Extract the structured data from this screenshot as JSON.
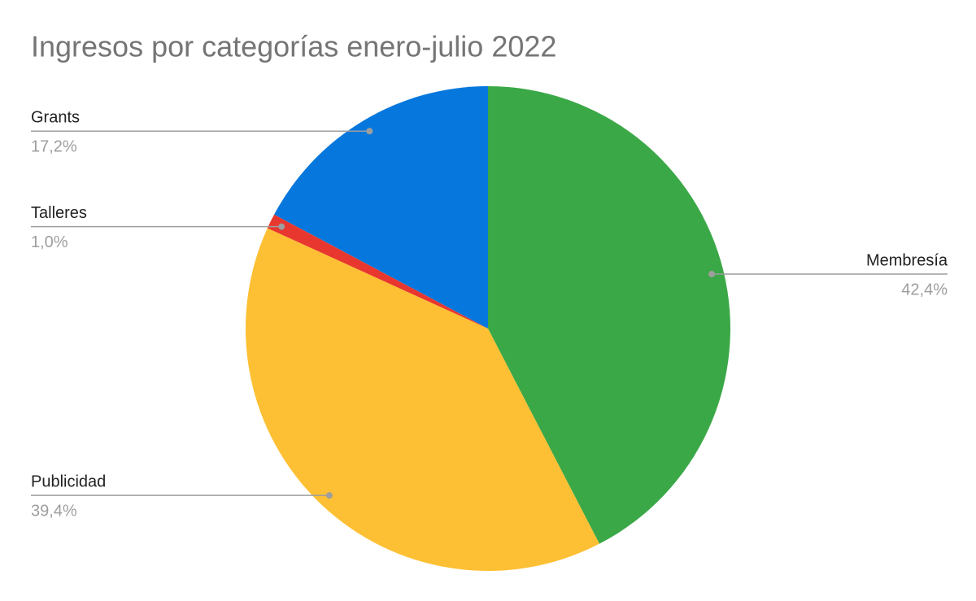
{
  "chart_data": {
    "type": "pie",
    "title": "Ingresos por categorías enero-julio 2022",
    "categories": [
      "Membresía",
      "Publicidad",
      "Talleres",
      "Grants"
    ],
    "values": [
      42.4,
      39.4,
      1.0,
      17.2
    ],
    "value_labels": [
      "42,4%",
      "39,4%",
      "1,0%",
      "17,2%"
    ],
    "colors": [
      "#3ba847",
      "#fdc034",
      "#e8372f",
      "#0677dc"
    ]
  }
}
